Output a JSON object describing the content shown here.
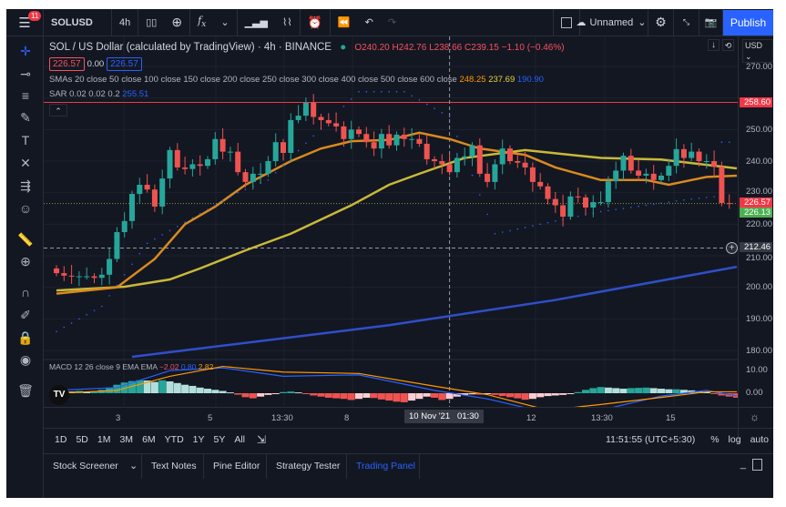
{
  "topbar": {
    "symbol": "SOLUSD",
    "interval": "4h",
    "layout_name": "Unnamed",
    "publish": "Publish",
    "notifications": "11",
    "icons": [
      "candles-icon",
      "add-compare-icon",
      "indicators-icon",
      "chevron-down-icon",
      "templates-icon",
      "alert-icon-wave",
      "alert-icon",
      "replay-icon",
      "undo-icon",
      "redo-icon"
    ]
  },
  "legend": {
    "title": "SOL / US Dollar (calculated by TradingView) · 4h · BINANCE",
    "open": "O240.20",
    "high": "H242.76",
    "low": "L238.66",
    "close": "C239.15",
    "change": "−1.10 (−0.46%)",
    "bid": "226.57",
    "spread": "0.00",
    "ask": "226.57",
    "smas_label": "SMAs 20 close 50 close 100 close 150 close 200 close 250 close 300 close 400 close 500 close 600 close",
    "sma_v1": "248.25",
    "sma_v2": "237.69",
    "sma_v3": "190.90",
    "sar_label": "SAR 0.02 0.02 0.2",
    "sar_value": "255.51"
  },
  "price_axis": {
    "currency": "USD",
    "ticks": [
      "270.00",
      "250.00",
      "240.00",
      "230.00",
      "220.00",
      "210.00",
      "200.00",
      "190.00",
      "180.00"
    ],
    "high_tag": "258.60",
    "last_tag": "226.57",
    "prev_tag": "226.13",
    "crosshair_tag": "212.46"
  },
  "macd": {
    "label": "MACD 12 26 close 9 EMA EMA",
    "v1": "−2.02",
    "v2": "0.80",
    "v3": "2.82",
    "ticks": [
      "10.00",
      "0.00"
    ]
  },
  "time_axis": {
    "labels": [
      "3",
      "5",
      "13:30",
      "8",
      "12",
      "13:30",
      "15"
    ],
    "crosshair": "10 Nov '21   01:30"
  },
  "range_bar": {
    "ranges": [
      "1D",
      "5D",
      "1M",
      "3M",
      "6M",
      "YTD",
      "1Y",
      "5Y",
      "All"
    ],
    "clock": "11:51:55 (UTC+5:30)",
    "percent": "%",
    "log": "log",
    "auto": "auto"
  },
  "bottom_panel": {
    "tabs": [
      "Stock Screener",
      "Text Notes",
      "Pine Editor",
      "Strategy Tester",
      "Trading Panel"
    ],
    "active": "Trading Panel"
  },
  "colors": {
    "up": "#26a69a",
    "down": "#ef5350",
    "sma_orange": "#d98a1f",
    "sma_yellow": "#c9b93a",
    "sma_blue": "#2f4fc9",
    "accent": "#2962ff"
  },
  "chart_data": {
    "type": "candlestick",
    "ylim": [
      176,
      272
    ],
    "first_open": 206,
    "closes": [
      204.5,
      203.7,
      203.5,
      203.5,
      203.5,
      203,
      204,
      209,
      217.5,
      221,
      229.6,
      232.5,
      231,
      225.6,
      234.5,
      243.5,
      238,
      237.5,
      239,
      238.5,
      240.6,
      247,
      243,
      243,
      236.5,
      233.4,
      236,
      236,
      240,
      246,
      242.6,
      253,
      254.4,
      258.5,
      254,
      253,
      252,
      251,
      247,
      250,
      248.6,
      246,
      244,
      248.6,
      245,
      248.4,
      247,
      247,
      245.5,
      240.6,
      240,
      239,
      236.5,
      241,
      241.5,
      245,
      236,
      233.4,
      239,
      244,
      240,
      239.5,
      238,
      233.4,
      232,
      228,
      226,
      222.4,
      228.8,
      228.5,
      225.3,
      227,
      227,
      233.6,
      237,
      241.7,
      237,
      235.4,
      236,
      234,
      235.4,
      238.5,
      243.8,
      241,
      243,
      240,
      240,
      238.2,
      226.7,
      226.57
    ],
    "sma_orange": [
      [
        0,
        198
      ],
      [
        8,
        200
      ],
      [
        13,
        209
      ],
      [
        17,
        220
      ],
      [
        21,
        225.6
      ],
      [
        25,
        232.5
      ],
      [
        31,
        240
      ],
      [
        35,
        244
      ],
      [
        39,
        246.3
      ],
      [
        44,
        246.7
      ],
      [
        48,
        249
      ],
      [
        52,
        247
      ],
      [
        56,
        244
      ],
      [
        62,
        242
      ],
      [
        66,
        238
      ],
      [
        72,
        234
      ],
      [
        78,
        234
      ],
      [
        81,
        232.5
      ],
      [
        86,
        235
      ],
      [
        90,
        235.4
      ]
    ],
    "sma_yellow": [
      [
        0,
        199
      ],
      [
        9,
        200.2
      ],
      [
        15,
        202.5
      ],
      [
        19,
        206
      ],
      [
        25,
        211.7
      ],
      [
        31,
        217
      ],
      [
        39,
        226
      ],
      [
        44,
        232.5
      ],
      [
        48,
        236
      ],
      [
        54,
        241
      ],
      [
        62,
        243.5
      ],
      [
        72,
        241
      ],
      [
        80,
        240.5
      ],
      [
        90,
        237.7
      ]
    ],
    "sma_blue": [
      [
        10,
        178
      ],
      [
        44,
        188
      ],
      [
        66,
        196
      ],
      [
        90,
        206.5
      ]
    ],
    "sar": [
      [
        0,
        186
      ],
      [
        6,
        194
      ],
      [
        12,
        214
      ],
      [
        18,
        222
      ],
      [
        24,
        230
      ],
      [
        28,
        234
      ],
      [
        34,
        248
      ],
      [
        40,
        262
      ],
      [
        46,
        262
      ],
      [
        52,
        254
      ],
      [
        58,
        217
      ],
      [
        66,
        221
      ],
      [
        72,
        224
      ],
      [
        78,
        226
      ],
      [
        84,
        228
      ],
      [
        88,
        229
      ],
      [
        88,
        246
      ],
      [
        90,
        246
      ]
    ],
    "high_line": 258.6,
    "last_price": 226.57,
    "crosshair_price": 212.46,
    "crosshair_index": 52,
    "macd_hist": [
      1,
      0.8,
      0.6,
      0.8,
      0.5,
      0.7,
      1.2,
      2,
      3,
      3.8,
      4.3,
      4.6,
      4.5,
      4.0,
      4.6,
      4.2,
      3.6,
      3.0,
      2.6,
      2.0,
      1.6,
      1.2,
      0.8,
      0.3,
      -0.5,
      -1.4,
      -1.8,
      -1.2,
      -0.6,
      -0.3,
      0.4,
      0.6,
      0.3,
      -0.2,
      -0.8,
      -1.2,
      -1.6,
      -1.8,
      -2.0,
      -2.4,
      -2.0,
      -1.6,
      -1.7,
      -2.2,
      -2.6,
      -3.0,
      -3.2,
      -2.6,
      -2.0,
      -1.2,
      -1.6,
      -2.4,
      -2.0,
      -1.2,
      -0.6,
      -0.4,
      -0.5,
      -0.3,
      -0.6,
      -1.0,
      -1.4,
      -1.8,
      -2.3,
      -2.0,
      -1.4,
      -1.0,
      -0.8,
      -0.6,
      -0.2,
      0.4,
      1.2,
      1.8,
      2.2,
      2.0,
      1.8,
      1.6,
      1.8,
      1.9,
      2.0,
      1.8,
      1.6,
      1.4,
      1.4,
      1.2,
      1.0,
      0.8,
      0.4,
      -0.2,
      -0.8,
      -1.2,
      -1.6
    ],
    "macd_line": [
      [
        0,
        1
      ],
      [
        8,
        2
      ],
      [
        15,
        8
      ],
      [
        22,
        9
      ],
      [
        30,
        6
      ],
      [
        40,
        6.5
      ],
      [
        50,
        1
      ],
      [
        57,
        -2
      ],
      [
        65,
        -7
      ],
      [
        72,
        -6
      ],
      [
        80,
        -1
      ],
      [
        86,
        1
      ],
      [
        90,
        -1
      ]
    ],
    "macd_signal": [
      [
        0,
        0
      ],
      [
        8,
        1
      ],
      [
        15,
        6
      ],
      [
        22,
        9.5
      ],
      [
        30,
        7.5
      ],
      [
        40,
        7
      ],
      [
        50,
        2.5
      ],
      [
        57,
        -0.5
      ],
      [
        65,
        -6
      ],
      [
        72,
        -4
      ],
      [
        80,
        -1.5
      ],
      [
        86,
        0.5
      ],
      [
        90,
        0.5
      ]
    ],
    "macd_ylim": [
      -4,
      12
    ]
  }
}
